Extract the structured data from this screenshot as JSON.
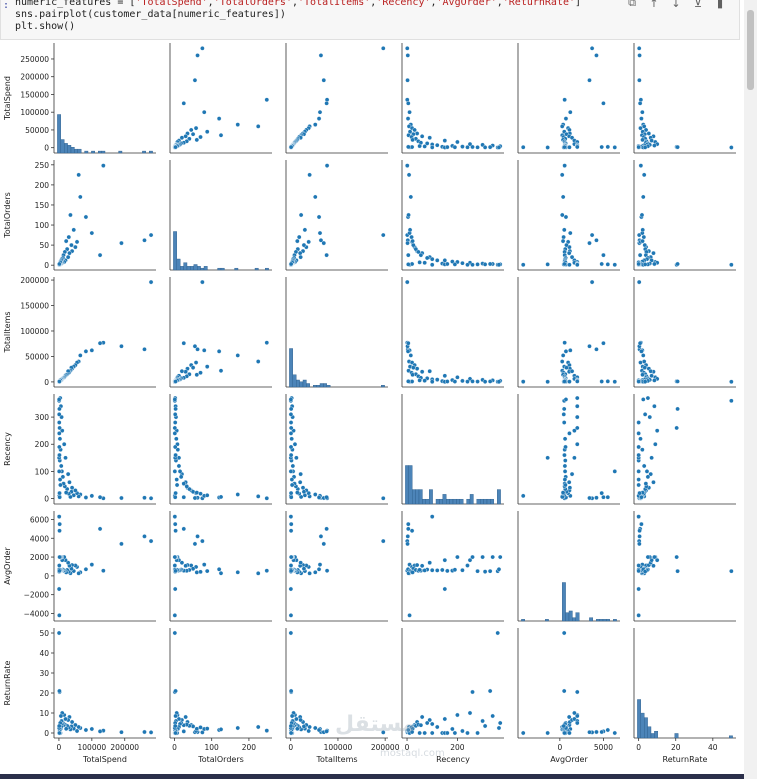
{
  "cell": {
    "prompt": ":",
    "code_line1_prefix": "numeric_features = [",
    "code_line1_strings": [
      "'TotalSpend'",
      "'TotalOrders'",
      "'TotalItems'",
      "'Recency'",
      "'AvgOrder'",
      "'ReturnRate'"
    ],
    "code_line1_suffix": "]",
    "code_line2": "sns.pairplot(customer_data[numeric_features])",
    "code_line3": "plt.show()"
  },
  "toolbar": {
    "icons": [
      "copy-icon",
      "move-up-icon",
      "move-down-icon",
      "insert-below-icon",
      "delete-icon"
    ]
  },
  "watermark": {
    "text": "مستقل",
    "sub": "mostaql.com"
  },
  "colors": {
    "point": "#1f77b4",
    "hist": "#4c84b8"
  },
  "chart_data": {
    "type": "scatter",
    "subtype": "pairplot",
    "variables": [
      "TotalSpend",
      "TotalOrders",
      "TotalItems",
      "Recency",
      "AvgOrder",
      "ReturnRate"
    ],
    "y_ticks": {
      "TotalSpend": [
        "0",
        "50000",
        "100000",
        "150000",
        "200000",
        "250000"
      ],
      "TotalOrders": [
        "0",
        "50",
        "100",
        "150",
        "200",
        "250"
      ],
      "TotalItems": [
        "0",
        "50000",
        "100000",
        "150000",
        "200000"
      ],
      "Recency": [
        "0",
        "100",
        "200",
        "300"
      ],
      "AvgOrder": [
        "−4000",
        "−2000",
        "0",
        "2000",
        "4000",
        "6000"
      ],
      "ReturnRate": [
        "0",
        "10",
        "20",
        "30",
        "40",
        "50"
      ]
    },
    "x_ticks": {
      "TotalSpend": [
        "0",
        "100000",
        "200000"
      ],
      "TotalOrders": [
        "0",
        "100",
        "200"
      ],
      "TotalItems": [
        "0",
        "100000",
        "200000"
      ],
      "Recency": [
        "0",
        "200"
      ],
      "AvgOrder": [
        "0",
        "5000"
      ],
      "ReturnRate": [
        "0",
        "20",
        "40"
      ]
    },
    "points": [
      {
        "TotalSpend": 280000,
        "TotalOrders": 75,
        "TotalItems": 196000,
        "Recency": 1,
        "AvgOrder": 3700,
        "ReturnRate": 0.3
      },
      {
        "TotalSpend": 260000,
        "TotalOrders": 62,
        "TotalItems": 64000,
        "Recency": 3,
        "AvgOrder": 4200,
        "ReturnRate": 0.5
      },
      {
        "TotalSpend": 190000,
        "TotalOrders": 55,
        "TotalItems": 70000,
        "Recency": 2,
        "AvgOrder": 3400,
        "ReturnRate": 0.4
      },
      {
        "TotalSpend": 135000,
        "TotalOrders": 248,
        "TotalItems": 77000,
        "Recency": 1,
        "AvgOrder": 550,
        "ReturnRate": 1.2
      },
      {
        "TotalSpend": 125000,
        "TotalOrders": 25,
        "TotalItems": 76000,
        "Recency": 5,
        "AvgOrder": 5000,
        "ReturnRate": 0.8
      },
      {
        "TotalSpend": 100000,
        "TotalOrders": 80,
        "TotalItems": 62000,
        "Recency": 10,
        "AvgOrder": 1200,
        "ReturnRate": 2.0
      },
      {
        "TotalSpend": 82000,
        "TotalOrders": 120,
        "TotalItems": 60000,
        "Recency": 4,
        "AvgOrder": 700,
        "ReturnRate": 1.5
      },
      {
        "TotalSpend": 65000,
        "TotalOrders": 170,
        "TotalItems": 52000,
        "Recency": 15,
        "AvgOrder": 380,
        "ReturnRate": 2.5
      },
      {
        "TotalSpend": 60000,
        "TotalOrders": 225,
        "TotalItems": 40000,
        "Recency": 8,
        "AvgOrder": 270,
        "ReturnRate": 3.0
      },
      {
        "TotalSpend": 55000,
        "TotalOrders": 58,
        "TotalItems": 38000,
        "Recency": 20,
        "AvgOrder": 950,
        "ReturnRate": 1.0
      },
      {
        "TotalSpend": 50000,
        "TotalOrders": 45,
        "TotalItems": 33000,
        "Recency": 30,
        "AvgOrder": 1100,
        "ReturnRate": 4.0
      },
      {
        "TotalSpend": 45000,
        "TotalOrders": 88,
        "TotalItems": 30000,
        "Recency": 12,
        "AvgOrder": 510,
        "ReturnRate": 2.2
      },
      {
        "TotalSpend": 40000,
        "TotalOrders": 35,
        "TotalItems": 26000,
        "Recency": 40,
        "AvgOrder": 1150,
        "ReturnRate": 5.5
      },
      {
        "TotalSpend": 38000,
        "TotalOrders": 50,
        "TotalItems": 28000,
        "Recency": 25,
        "AvgOrder": 760,
        "ReturnRate": 3.3
      },
      {
        "TotalSpend": 35000,
        "TotalOrders": 125,
        "TotalItems": 22000,
        "Recency": 6,
        "AvgOrder": 280,
        "ReturnRate": 1.8
      },
      {
        "TotalSpend": 32000,
        "TotalOrders": 30,
        "TotalItems": 20000,
        "Recency": 60,
        "AvgOrder": 1070,
        "ReturnRate": 8.0
      },
      {
        "TotalSpend": 30000,
        "TotalOrders": 70,
        "TotalItems": 18000,
        "Recency": 18,
        "AvgOrder": 430,
        "ReturnRate": 2.8
      },
      {
        "TotalSpend": 28000,
        "TotalOrders": 20,
        "TotalItems": 21000,
        "Recency": 90,
        "AvgOrder": 1400,
        "ReturnRate": 6.5
      },
      {
        "TotalSpend": 25000,
        "TotalOrders": 40,
        "TotalItems": 15000,
        "Recency": 35,
        "AvgOrder": 625,
        "ReturnRate": 3.6
      },
      {
        "TotalSpend": 22000,
        "TotalOrders": 60,
        "TotalItems": 14000,
        "Recency": 22,
        "AvgOrder": 370,
        "ReturnRate": 2.1
      },
      {
        "TotalSpend": 20000,
        "TotalOrders": 12,
        "TotalItems": 12000,
        "Recency": 150,
        "AvgOrder": 1670,
        "ReturnRate": 7.0
      },
      {
        "TotalSpend": 18000,
        "TotalOrders": 33,
        "TotalItems": 11000,
        "Recency": 45,
        "AvgOrder": 545,
        "ReturnRate": 4.2
      },
      {
        "TotalSpend": 16000,
        "TotalOrders": 8,
        "TotalItems": 9000,
        "Recency": 200,
        "AvgOrder": 2000,
        "ReturnRate": 9.0
      },
      {
        "TotalSpend": 14000,
        "TotalOrders": 25,
        "TotalItems": 8000,
        "Recency": 55,
        "AvgOrder": 560,
        "ReturnRate": 3.9
      },
      {
        "TotalSpend": 12000,
        "TotalOrders": 18,
        "TotalItems": 7000,
        "Recency": 80,
        "AvgOrder": 670,
        "ReturnRate": 5.0
      },
      {
        "TotalSpend": 10000,
        "TotalOrders": 6,
        "TotalItems": 6000,
        "Recency": 250,
        "AvgOrder": 1670,
        "ReturnRate": 10.0
      },
      {
        "TotalSpend": 9000,
        "TotalOrders": 15,
        "TotalItems": 5000,
        "Recency": 100,
        "AvgOrder": 600,
        "ReturnRate": 4.5
      },
      {
        "TotalSpend": 8000,
        "TotalOrders": 4,
        "TotalItems": 4000,
        "Recency": 300,
        "AvgOrder": 2000,
        "ReturnRate": 6.0
      },
      {
        "TotalSpend": 7000,
        "TotalOrders": 12,
        "TotalItems": 4500,
        "Recency": 120,
        "AvgOrder": 580,
        "ReturnRate": 3.0
      },
      {
        "TotalSpend": 6000,
        "TotalOrders": 3,
        "TotalItems": 3000,
        "Recency": 340,
        "AvgOrder": 2000,
        "ReturnRate": 8.5
      },
      {
        "TotalSpend": 5000,
        "TotalOrders": 9,
        "TotalItems": 3500,
        "Recency": 180,
        "AvgOrder": 555,
        "ReturnRate": 2.0
      },
      {
        "TotalSpend": 4000,
        "TotalOrders": 2,
        "TotalItems": 2000,
        "Recency": 370,
        "AvgOrder": 2000,
        "ReturnRate": 5.0
      },
      {
        "TotalSpend": 3000,
        "TotalOrders": 5,
        "TotalItems": 2000,
        "Recency": 220,
        "AvgOrder": 600,
        "ReturnRate": 1.0
      },
      {
        "TotalSpend": 2000,
        "TotalOrders": 1,
        "TotalItems": 1000,
        "Recency": 260,
        "AvgOrder": 2000,
        "ReturnRate": 20.5
      },
      {
        "TotalSpend": 1500,
        "TotalOrders": 3,
        "TotalItems": 900,
        "Recency": 330,
        "AvgOrder": 500,
        "ReturnRate": 21.0
      },
      {
        "TotalSpend": 500,
        "TotalOrders": 1,
        "TotalItems": 300,
        "Recency": 360,
        "AvgOrder": 500,
        "ReturnRate": 50.0
      },
      {
        "TotalSpend": 1000,
        "TotalOrders": 2,
        "TotalItems": 700,
        "Recency": 280,
        "AvgOrder": 500,
        "ReturnRate": 0.0
      },
      {
        "TotalSpend": 2500,
        "TotalOrders": 4,
        "TotalItems": 1500,
        "Recency": 140,
        "AvgOrder": 625,
        "ReturnRate": 0.0
      },
      {
        "TotalSpend": 3500,
        "TotalOrders": 6,
        "TotalItems": 2500,
        "Recency": 70,
        "AvgOrder": 580,
        "ReturnRate": 0.0
      },
      {
        "TotalSpend": 4500,
        "TotalOrders": 7,
        "TotalItems": 3000,
        "Recency": 50,
        "AvgOrder": 640,
        "ReturnRate": 0.0
      },
      {
        "TotalSpend": 1200,
        "TotalOrders": 1,
        "TotalItems": 500,
        "Recency": 10,
        "AvgOrder": -4200,
        "ReturnRate": 0.0
      },
      {
        "TotalSpend": 800,
        "TotalOrders": 1,
        "TotalItems": 400,
        "Recency": 100,
        "AvgOrder": 6300,
        "ReturnRate": 0.0
      },
      {
        "TotalSpend": 600,
        "TotalOrders": 2,
        "TotalItems": 300,
        "Recency": 150,
        "AvgOrder": -1400,
        "ReturnRate": 0.0
      },
      {
        "TotalSpend": 1800,
        "TotalOrders": 3,
        "TotalItems": 800,
        "Recency": 20,
        "AvgOrder": 4800,
        "ReturnRate": 0.5
      },
      {
        "TotalSpend": 2200,
        "TotalOrders": 2,
        "TotalItems": 1100,
        "Recency": 5,
        "AvgOrder": 5500,
        "ReturnRate": 1.5
      },
      {
        "TotalSpend": 700,
        "TotalOrders": 1,
        "TotalItems": 350,
        "Recency": 365,
        "AvgOrder": 700,
        "ReturnRate": 2.5
      },
      {
        "TotalSpend": 900,
        "TotalOrders": 2,
        "TotalItems": 450,
        "Recency": 310,
        "AvgOrder": 450,
        "ReturnRate": 3.5
      },
      {
        "TotalSpend": 1100,
        "TotalOrders": 1,
        "TotalItems": 600,
        "Recency": 240,
        "AvgOrder": 1100,
        "ReturnRate": 0.0
      },
      {
        "TotalSpend": 1300,
        "TotalOrders": 2,
        "TotalItems": 650,
        "Recency": 190,
        "AvgOrder": 650,
        "ReturnRate": 0.0
      },
      {
        "TotalSpend": 1600,
        "TotalOrders": 3,
        "TotalItems": 850,
        "Recency": 160,
        "AvgOrder": 530,
        "ReturnRate": 0.0
      }
    ]
  }
}
